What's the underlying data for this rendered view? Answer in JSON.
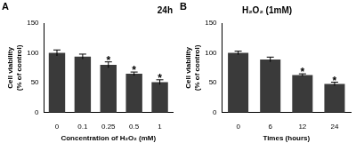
{
  "chart_data": [
    {
      "type": "bar",
      "panel": "A",
      "title": "24h",
      "categories": [
        "0",
        "0.1",
        "0.25",
        "0.5",
        "1"
      ],
      "values": [
        100,
        94,
        80,
        65,
        51
      ],
      "errors": [
        5,
        4,
        5,
        3,
        4
      ],
      "color": "#3a3a3a",
      "x_label": "Concentration of H₂O₂ (mM)",
      "y_label": "Cell viability (% of control)",
      "ylim": [
        0,
        150
      ],
      "yticks": [
        0,
        50,
        100,
        150
      ],
      "grid": false,
      "annotations": [
        {
          "category": "0.25",
          "text": "*"
        },
        {
          "category": "0.5",
          "text": "*"
        },
        {
          "category": "1",
          "text": "*"
        }
      ]
    },
    {
      "type": "bar",
      "panel": "B",
      "title": "H₂O₂ (1mM)",
      "categories": [
        "0",
        "6",
        "12",
        "24"
      ],
      "values": [
        100,
        89,
        63,
        48
      ],
      "errors": [
        3,
        4,
        2,
        3
      ],
      "color": "#3a3a3a",
      "x_label": "Times (hours)",
      "y_label": "Cell viability (% of control)",
      "ylim": [
        0,
        150
      ],
      "yticks": [
        0,
        50,
        100,
        150
      ],
      "grid": false,
      "annotations": [
        {
          "category": "12",
          "text": "*"
        },
        {
          "category": "24",
          "text": "*"
        }
      ]
    }
  ]
}
